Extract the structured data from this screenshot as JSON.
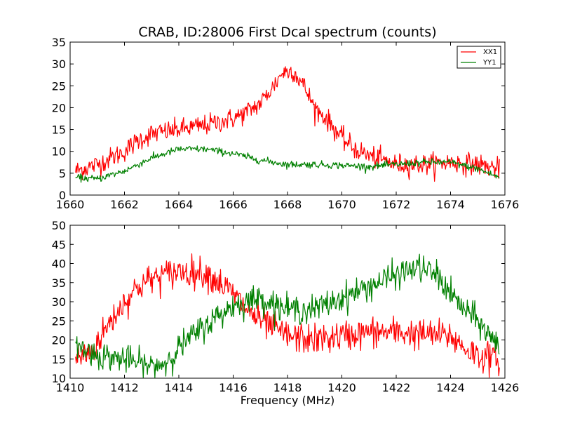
{
  "chart_data": [
    {
      "type": "line",
      "title": "CRAB, ID:28006 First Dcal spectrum (counts)",
      "xlabel": "",
      "ylabel": "",
      "xlim": [
        1660,
        1676
      ],
      "ylim": [
        0,
        35
      ],
      "xticks": [
        "1660",
        "1662",
        "1664",
        "1666",
        "1668",
        "1670",
        "1672",
        "1674",
        "1676"
      ],
      "yticks": [
        "0",
        "5",
        "10",
        "15",
        "20",
        "25",
        "30",
        "35"
      ],
      "x_start": 1660.2,
      "x_end": 1675.8,
      "legend": {
        "position": "top-right",
        "entries": [
          "XX1",
          "YY1"
        ]
      },
      "series": [
        {
          "name": "XX1",
          "color": "#ff0000",
          "noise": 1.2,
          "x": [
            1660.2,
            1661.0,
            1662.0,
            1662.5,
            1663.0,
            1664.0,
            1665.0,
            1666.0,
            1666.5,
            1667.0,
            1667.5,
            1667.8,
            1668.2,
            1668.6,
            1669.0,
            1669.5,
            1670.0,
            1670.5,
            1671.0,
            1671.5,
            1672.0,
            1673.0,
            1674.0,
            1675.0,
            1675.8
          ],
          "values": [
            5.5,
            7,
            10,
            12.5,
            14,
            15,
            16,
            17.5,
            19,
            21,
            25,
            28,
            28.5,
            25,
            20,
            17,
            13,
            10.5,
            9,
            8,
            7,
            7,
            7.5,
            7,
            6
          ]
        },
        {
          "name": "YY1",
          "color": "#008000",
          "noise": 0.4,
          "x": [
            1660.2,
            1661.0,
            1662.0,
            1663.0,
            1664.0,
            1665.0,
            1666.0,
            1667.0,
            1668.0,
            1669.0,
            1670.0,
            1671.0,
            1672.0,
            1673.0,
            1674.0,
            1675.0,
            1675.8
          ],
          "values": [
            4,
            3.7,
            5.5,
            8.5,
            10.5,
            10.5,
            9.5,
            8,
            7,
            7,
            6.8,
            6.5,
            7,
            7.5,
            7.5,
            6,
            4
          ]
        }
      ]
    },
    {
      "type": "line",
      "title": "",
      "xlabel": "Frequency (MHz)",
      "ylabel": "",
      "xlim": [
        1410,
        1426
      ],
      "ylim": [
        10,
        50
      ],
      "xticks": [
        "1410",
        "1412",
        "1414",
        "1416",
        "1418",
        "1420",
        "1422",
        "1424",
        "1426"
      ],
      "yticks": [
        "10",
        "15",
        "20",
        "25",
        "30",
        "35",
        "40",
        "45",
        "50"
      ],
      "x_start": 1410.2,
      "x_end": 1425.8,
      "series": [
        {
          "name": "XX1",
          "color": "#ff0000",
          "noise": 2.0,
          "x": [
            1410.2,
            1410.8,
            1411.5,
            1412.0,
            1412.5,
            1413.0,
            1414.0,
            1415.0,
            1415.5,
            1416.0,
            1416.5,
            1417.0,
            1418.0,
            1419.0,
            1420.0,
            1421.0,
            1422.0,
            1423.0,
            1424.0,
            1424.5,
            1425.0,
            1425.8
          ],
          "values": [
            15,
            17,
            25,
            30,
            34,
            36,
            38,
            37.5,
            35,
            32,
            28,
            25,
            21,
            20,
            21,
            22,
            22,
            21.5,
            21,
            18,
            16,
            15
          ]
        },
        {
          "name": "YY1",
          "color": "#008000",
          "noise": 1.8,
          "x": [
            1410.2,
            1411.0,
            1412.0,
            1413.0,
            1413.5,
            1414.0,
            1415.0,
            1416.0,
            1417.0,
            1418.0,
            1419.0,
            1420.0,
            1421.0,
            1422.0,
            1422.8,
            1423.5,
            1424.0,
            1424.5,
            1425.0,
            1425.8
          ],
          "values": [
            18.5,
            16,
            15,
            13,
            14,
            18,
            24,
            29,
            31,
            28,
            28,
            31,
            34,
            37,
            39,
            37,
            32,
            28,
            25,
            18
          ]
        }
      ]
    }
  ]
}
